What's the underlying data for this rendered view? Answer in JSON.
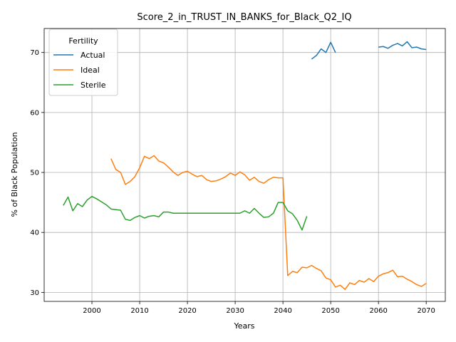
{
  "chart_data": {
    "type": "line",
    "title": "Score_2_in_TRUST_IN_BANKS_for_Black_Q2_IQ",
    "xlabel": "Years",
    "ylabel": "% of Black Population",
    "xlim": [
      1990,
      2074
    ],
    "ylim": [
      28.5,
      74
    ],
    "xticks": [
      2000,
      2010,
      2020,
      2030,
      2040,
      2050,
      2060,
      2070
    ],
    "yticks": [
      30,
      40,
      50,
      60,
      70
    ],
    "grid": true,
    "legend": {
      "title": "Fertility",
      "placement": "upper-left"
    },
    "series": [
      {
        "name": "Actual",
        "color": "#1f77b4",
        "points": [
          [
            2046,
            68.9
          ],
          [
            2047,
            69.5
          ],
          [
            2048,
            70.6
          ],
          [
            2049,
            70.0
          ],
          [
            2050,
            71.7
          ],
          [
            2051,
            70.0
          ],
          [
            2060,
            70.9
          ],
          [
            2061,
            71.0
          ],
          [
            2062,
            70.7
          ],
          [
            2063,
            71.2
          ],
          [
            2064,
            71.5
          ],
          [
            2065,
            71.1
          ],
          [
            2066,
            71.8
          ],
          [
            2067,
            70.8
          ],
          [
            2068,
            70.9
          ],
          [
            2069,
            70.6
          ],
          [
            2070,
            70.5
          ]
        ]
      },
      {
        "name": "Ideal",
        "color": "#ff7f0e",
        "points": [
          [
            2004,
            52.3
          ],
          [
            2005,
            50.5
          ],
          [
            2006,
            50.0
          ],
          [
            2007,
            48.0
          ],
          [
            2008,
            48.5
          ],
          [
            2009,
            49.3
          ],
          [
            2010,
            50.8
          ],
          [
            2011,
            52.7
          ],
          [
            2012,
            52.3
          ],
          [
            2013,
            52.8
          ],
          [
            2014,
            51.9
          ],
          [
            2015,
            51.6
          ],
          [
            2016,
            50.9
          ],
          [
            2017,
            50.1
          ],
          [
            2018,
            49.5
          ],
          [
            2019,
            50.0
          ],
          [
            2020,
            50.2
          ],
          [
            2021,
            49.7
          ],
          [
            2022,
            49.3
          ],
          [
            2023,
            49.5
          ],
          [
            2024,
            48.8
          ],
          [
            2025,
            48.5
          ],
          [
            2026,
            48.6
          ],
          [
            2027,
            48.9
          ],
          [
            2028,
            49.3
          ],
          [
            2029,
            49.9
          ],
          [
            2030,
            49.5
          ],
          [
            2031,
            50.1
          ],
          [
            2032,
            49.6
          ],
          [
            2033,
            48.7
          ],
          [
            2034,
            49.2
          ],
          [
            2035,
            48.5
          ],
          [
            2036,
            48.2
          ],
          [
            2037,
            48.8
          ],
          [
            2038,
            49.2
          ],
          [
            2039,
            49.1
          ],
          [
            2040,
            49.1
          ],
          [
            2041,
            32.8
          ],
          [
            2042,
            33.5
          ],
          [
            2043,
            33.3
          ],
          [
            2044,
            34.2
          ],
          [
            2045,
            34.1
          ],
          [
            2046,
            34.5
          ],
          [
            2047,
            34.0
          ],
          [
            2048,
            33.6
          ],
          [
            2049,
            32.4
          ],
          [
            2050,
            32.1
          ],
          [
            2051,
            30.9
          ],
          [
            2052,
            31.2
          ],
          [
            2053,
            30.5
          ],
          [
            2054,
            31.6
          ],
          [
            2055,
            31.3
          ],
          [
            2056,
            32.0
          ],
          [
            2057,
            31.7
          ],
          [
            2058,
            32.3
          ],
          [
            2059,
            31.8
          ],
          [
            2060,
            32.7
          ],
          [
            2061,
            33.1
          ],
          [
            2062,
            33.3
          ],
          [
            2063,
            33.7
          ],
          [
            2064,
            32.6
          ],
          [
            2065,
            32.7
          ],
          [
            2066,
            32.2
          ],
          [
            2067,
            31.8
          ],
          [
            2068,
            31.3
          ],
          [
            2069,
            31.0
          ],
          [
            2070,
            31.5
          ]
        ]
      },
      {
        "name": "Sterile",
        "color": "#2ca02c",
        "points": [
          [
            1994,
            44.5
          ],
          [
            1995,
            45.9
          ],
          [
            1996,
            43.6
          ],
          [
            1997,
            44.8
          ],
          [
            1998,
            44.3
          ],
          [
            1999,
            45.4
          ],
          [
            2000,
            46.0
          ],
          [
            2001,
            45.6
          ],
          [
            2002,
            45.1
          ],
          [
            2003,
            44.6
          ],
          [
            2004,
            43.9
          ],
          [
            2005,
            43.8
          ],
          [
            2006,
            43.7
          ],
          [
            2007,
            42.2
          ],
          [
            2008,
            42.0
          ],
          [
            2009,
            42.5
          ],
          [
            2010,
            42.8
          ],
          [
            2011,
            42.4
          ],
          [
            2012,
            42.7
          ],
          [
            2013,
            42.8
          ],
          [
            2014,
            42.6
          ],
          [
            2015,
            43.4
          ],
          [
            2016,
            43.4
          ],
          [
            2017,
            43.2
          ],
          [
            2018,
            43.2
          ],
          [
            2019,
            43.2
          ],
          [
            2020,
            43.2
          ],
          [
            2021,
            43.2
          ],
          [
            2022,
            43.2
          ],
          [
            2023,
            43.2
          ],
          [
            2024,
            43.2
          ],
          [
            2025,
            43.2
          ],
          [
            2026,
            43.2
          ],
          [
            2027,
            43.2
          ],
          [
            2028,
            43.2
          ],
          [
            2029,
            43.2
          ],
          [
            2030,
            43.2
          ],
          [
            2031,
            43.2
          ],
          [
            2032,
            43.6
          ],
          [
            2033,
            43.2
          ],
          [
            2034,
            44.0
          ],
          [
            2035,
            43.2
          ],
          [
            2036,
            42.5
          ],
          [
            2037,
            42.6
          ],
          [
            2038,
            43.2
          ],
          [
            2039,
            45.0
          ],
          [
            2040,
            45.0
          ],
          [
            2041,
            43.6
          ],
          [
            2042,
            43.1
          ],
          [
            2043,
            42.0
          ],
          [
            2044,
            40.4
          ],
          [
            2045,
            42.7
          ]
        ]
      }
    ]
  }
}
